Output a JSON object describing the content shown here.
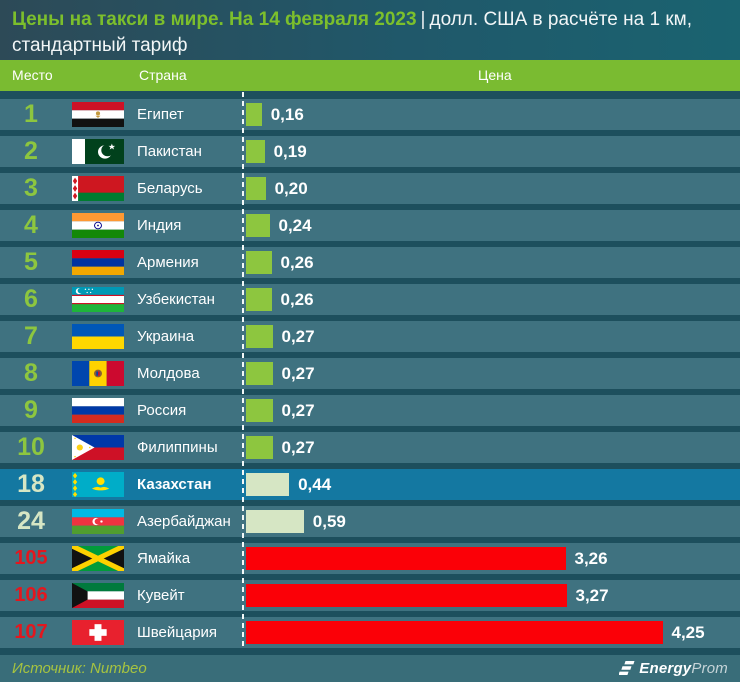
{
  "header": {
    "title_green": "Цены на такси в мире. На 14 февраля 2023",
    "title_separator": "|",
    "title_white": "долл. США в расчёте на 1 км,",
    "title_line2": "стандартный тариф"
  },
  "columns": {
    "rank": "Место",
    "country": "Страна",
    "price": "Цена"
  },
  "footer": {
    "source": "Источник: Numbeo",
    "logo_bold": "Energy",
    "logo_light": "Prom"
  },
  "colors": {
    "title_green": "#7cbf2c",
    "header_band": "#7abb31",
    "row_background": "#3f7280",
    "highlight_row": "#1478a1",
    "bar_green": "#8dc63f",
    "bar_pale": "#d6e6c4",
    "bar_red": "#fb0007",
    "rank_red": "#e3171e",
    "page_background": "#1d4f5d"
  },
  "chart_data": {
    "type": "bar",
    "orientation": "horizontal",
    "title": "Цены на такси в мире. На 14 февраля 2023",
    "subtitle": "долл. США в расчёте на 1 км, стандартный тариф",
    "source": "Numbeo",
    "xlim": [
      0,
      5
    ],
    "rows": [
      {
        "rank": "1",
        "country": "Египет",
        "flag": "flag-egypt",
        "value": 0.16,
        "label": "0,16",
        "style": "green",
        "highlight": false
      },
      {
        "rank": "2",
        "country": "Пакистан",
        "flag": "flag-pakistan",
        "value": 0.19,
        "label": "0,19",
        "style": "green",
        "highlight": false
      },
      {
        "rank": "3",
        "country": "Беларусь",
        "flag": "flag-belarus",
        "value": 0.2,
        "label": "0,20",
        "style": "green",
        "highlight": false
      },
      {
        "rank": "4",
        "country": "Индия",
        "flag": "flag-india",
        "value": 0.24,
        "label": "0,24",
        "style": "green",
        "highlight": false
      },
      {
        "rank": "5",
        "country": "Армения",
        "flag": "flag-armenia",
        "value": 0.26,
        "label": "0,26",
        "style": "green",
        "highlight": false
      },
      {
        "rank": "6",
        "country": "Узбекистан",
        "flag": "flag-uzbekistan",
        "value": 0.26,
        "label": "0,26",
        "style": "green",
        "highlight": false
      },
      {
        "rank": "7",
        "country": "Украина",
        "flag": "flag-ukraine",
        "value": 0.27,
        "label": "0,27",
        "style": "green",
        "highlight": false
      },
      {
        "rank": "8",
        "country": "Молдова",
        "flag": "flag-moldova",
        "value": 0.27,
        "label": "0,27",
        "style": "green",
        "highlight": false
      },
      {
        "rank": "9",
        "country": "Россия",
        "flag": "flag-russia",
        "value": 0.27,
        "label": "0,27",
        "style": "green",
        "highlight": false
      },
      {
        "rank": "10",
        "country": "Филиппины",
        "flag": "flag-philippines",
        "value": 0.27,
        "label": "0,27",
        "style": "green",
        "highlight": false
      },
      {
        "rank": "18",
        "country": "Казахстан",
        "flag": "flag-kazakhstan",
        "value": 0.44,
        "label": "0,44",
        "style": "pale",
        "highlight": true
      },
      {
        "rank": "24",
        "country": "Азербайджан",
        "flag": "flag-azerbaijan",
        "value": 0.59,
        "label": "0,59",
        "style": "pale",
        "highlight": false
      },
      {
        "rank": "105",
        "country": "Ямайка",
        "flag": "flag-jamaica",
        "value": 3.26,
        "label": "3,26",
        "style": "red",
        "highlight": false
      },
      {
        "rank": "106",
        "country": "Кувейт",
        "flag": "flag-kuwait",
        "value": 3.27,
        "label": "3,27",
        "style": "red",
        "highlight": false
      },
      {
        "rank": "107",
        "country": "Швейцария",
        "flag": "flag-switzerland",
        "value": 4.25,
        "label": "4,25",
        "style": "red",
        "highlight": false
      }
    ]
  }
}
